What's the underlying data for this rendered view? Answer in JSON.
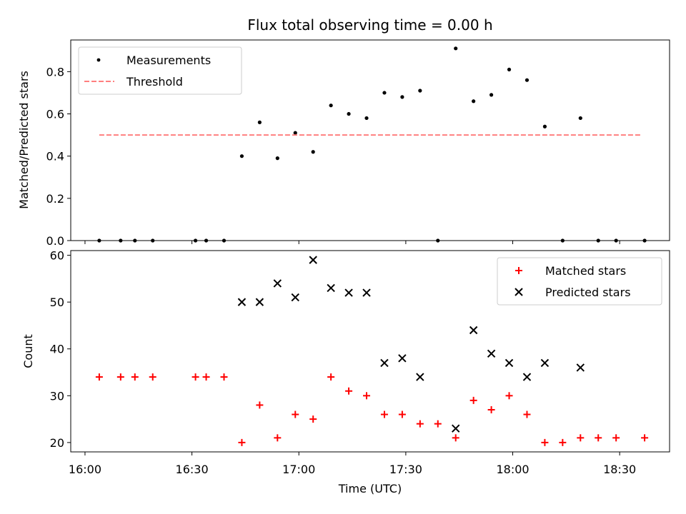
{
  "chart_data": [
    {
      "type": "scatter",
      "title": "Flux total observing time = 0.00 h",
      "xlabel": "",
      "ylabel": "Matched/Predicted stars",
      "xlim": [
        "15:56",
        "18:44"
      ],
      "ylim": [
        0,
        0.95
      ],
      "yticks": [
        "0.0",
        "0.2",
        "0.4",
        "0.6",
        "0.8"
      ],
      "grid": false,
      "legend_position": "top-left",
      "series": [
        {
          "name": "Measurements",
          "color": "#000000",
          "marker": "dot",
          "points": [
            [
              "16:04",
              0.0
            ],
            [
              "16:10",
              0.0
            ],
            [
              "16:14",
              0.0
            ],
            [
              "16:19",
              0.0
            ],
            [
              "16:31",
              0.0
            ],
            [
              "16:34",
              0.0
            ],
            [
              "16:39",
              0.0
            ],
            [
              "16:44",
              0.4
            ],
            [
              "16:49",
              0.56
            ],
            [
              "16:54",
              0.39
            ],
            [
              "16:59",
              0.51
            ],
            [
              "17:04",
              0.42
            ],
            [
              "17:09",
              0.64
            ],
            [
              "17:14",
              0.6
            ],
            [
              "17:19",
              0.58
            ],
            [
              "17:24",
              0.7
            ],
            [
              "17:29",
              0.68
            ],
            [
              "17:34",
              0.71
            ],
            [
              "17:39",
              0.0
            ],
            [
              "17:44",
              0.91
            ],
            [
              "17:49",
              0.66
            ],
            [
              "17:54",
              0.69
            ],
            [
              "17:59",
              0.81
            ],
            [
              "18:04",
              0.76
            ],
            [
              "18:09",
              0.54
            ],
            [
              "18:14",
              0.0
            ],
            [
              "18:19",
              0.58
            ],
            [
              "18:24",
              0.0
            ],
            [
              "18:29",
              0.0
            ],
            [
              "18:37",
              0.0
            ]
          ]
        },
        {
          "name": "Threshold",
          "color": "#ff7f7f",
          "style": "dashed",
          "points": [
            [
              "16:04",
              0.5
            ],
            [
              "18:36",
              0.5
            ]
          ]
        }
      ]
    },
    {
      "type": "scatter",
      "title": "",
      "xlabel": "Time (UTC)",
      "ylabel": "Count",
      "xlim": [
        "15:56",
        "18:44"
      ],
      "ylim": [
        18,
        61
      ],
      "xticks": [
        "16:00",
        "16:30",
        "17:00",
        "17:30",
        "18:00",
        "18:30"
      ],
      "yticks": [
        "20",
        "30",
        "40",
        "50",
        "60"
      ],
      "grid": false,
      "legend_position": "top-right",
      "series": [
        {
          "name": "Matched stars",
          "color": "#ff0000",
          "marker": "plus",
          "points": [
            [
              "16:04",
              34
            ],
            [
              "16:10",
              34
            ],
            [
              "16:14",
              34
            ],
            [
              "16:19",
              34
            ],
            [
              "16:31",
              34
            ],
            [
              "16:34",
              34
            ],
            [
              "16:39",
              34
            ],
            [
              "16:44",
              20
            ],
            [
              "16:49",
              28
            ],
            [
              "16:54",
              21
            ],
            [
              "16:59",
              26
            ],
            [
              "17:04",
              25
            ],
            [
              "17:09",
              34
            ],
            [
              "17:14",
              31
            ],
            [
              "17:19",
              30
            ],
            [
              "17:24",
              26
            ],
            [
              "17:29",
              26
            ],
            [
              "17:34",
              24
            ],
            [
              "17:39",
              24
            ],
            [
              "17:44",
              21
            ],
            [
              "17:49",
              29
            ],
            [
              "17:54",
              27
            ],
            [
              "17:59",
              30
            ],
            [
              "18:04",
              26
            ],
            [
              "18:09",
              20
            ],
            [
              "18:14",
              20
            ],
            [
              "18:19",
              21
            ],
            [
              "18:24",
              21
            ],
            [
              "18:29",
              21
            ],
            [
              "18:37",
              21
            ]
          ]
        },
        {
          "name": "Predicted stars",
          "color": "#000000",
          "marker": "x",
          "points": [
            [
              "16:44",
              50
            ],
            [
              "16:49",
              50
            ],
            [
              "16:54",
              54
            ],
            [
              "16:59",
              51
            ],
            [
              "17:04",
              59
            ],
            [
              "17:09",
              53
            ],
            [
              "17:14",
              52
            ],
            [
              "17:19",
              52
            ],
            [
              "17:24",
              37
            ],
            [
              "17:29",
              38
            ],
            [
              "17:34",
              34
            ],
            [
              "17:44",
              23
            ],
            [
              "17:49",
              44
            ],
            [
              "17:54",
              39
            ],
            [
              "17:59",
              37
            ],
            [
              "18:04",
              34
            ],
            [
              "18:09",
              37
            ],
            [
              "18:19",
              36
            ]
          ]
        }
      ]
    }
  ]
}
